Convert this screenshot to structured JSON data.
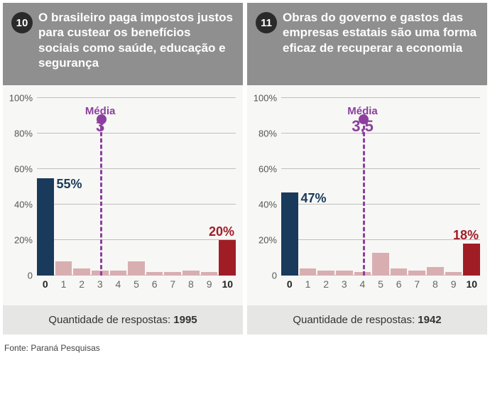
{
  "panels": [
    {
      "badge": "10",
      "title": "O brasileiro paga impostos justos para custear os benefícios sociais como saúde, educação e segurança",
      "categories": [
        "0",
        "1",
        "2",
        "3",
        "4",
        "5",
        "6",
        "7",
        "8",
        "9",
        "10"
      ],
      "values": [
        55,
        8,
        4,
        3,
        3,
        8,
        2,
        2,
        3,
        2,
        20
      ],
      "first_label": "55%",
      "last_label": "20%",
      "media_label": "Média",
      "media_value": "3",
      "media_position_index": 3,
      "responses_label": "Quantidade de respostas:",
      "responses_count": "1995"
    },
    {
      "badge": "11",
      "title": "Obras do governo e gastos das empresas estatais são uma forma eficaz de recuperar a economia",
      "categories": [
        "0",
        "1",
        "2",
        "3",
        "4",
        "5",
        "6",
        "7",
        "8",
        "9",
        "10"
      ],
      "values": [
        47,
        4,
        3,
        3,
        2,
        13,
        4,
        3,
        5,
        2,
        18
      ],
      "first_label": "47%",
      "last_label": "18%",
      "media_label": "Média",
      "media_value": "3,5",
      "media_position_index": 4,
      "responses_label": "Quantidade de respostas:",
      "responses_count": "1942"
    }
  ],
  "style": {
    "bar_color_first": "#1a3a5c",
    "bar_color_last": "#a01d26",
    "bar_color_mid": "#d9aeb1",
    "background": "#f7f7f5",
    "header_bg": "#8f8f8f",
    "grid_color": "#bfbfbf",
    "media_color": "#8c3f9e",
    "footer_bg": "#e6e6e4",
    "ylim": [
      0,
      100
    ],
    "ytick_step": 20,
    "ytick_labels": [
      "0",
      "20%",
      "40%",
      "60%",
      "80%",
      "100%"
    ]
  },
  "source": "Fonte: Paraná Pesquisas"
}
